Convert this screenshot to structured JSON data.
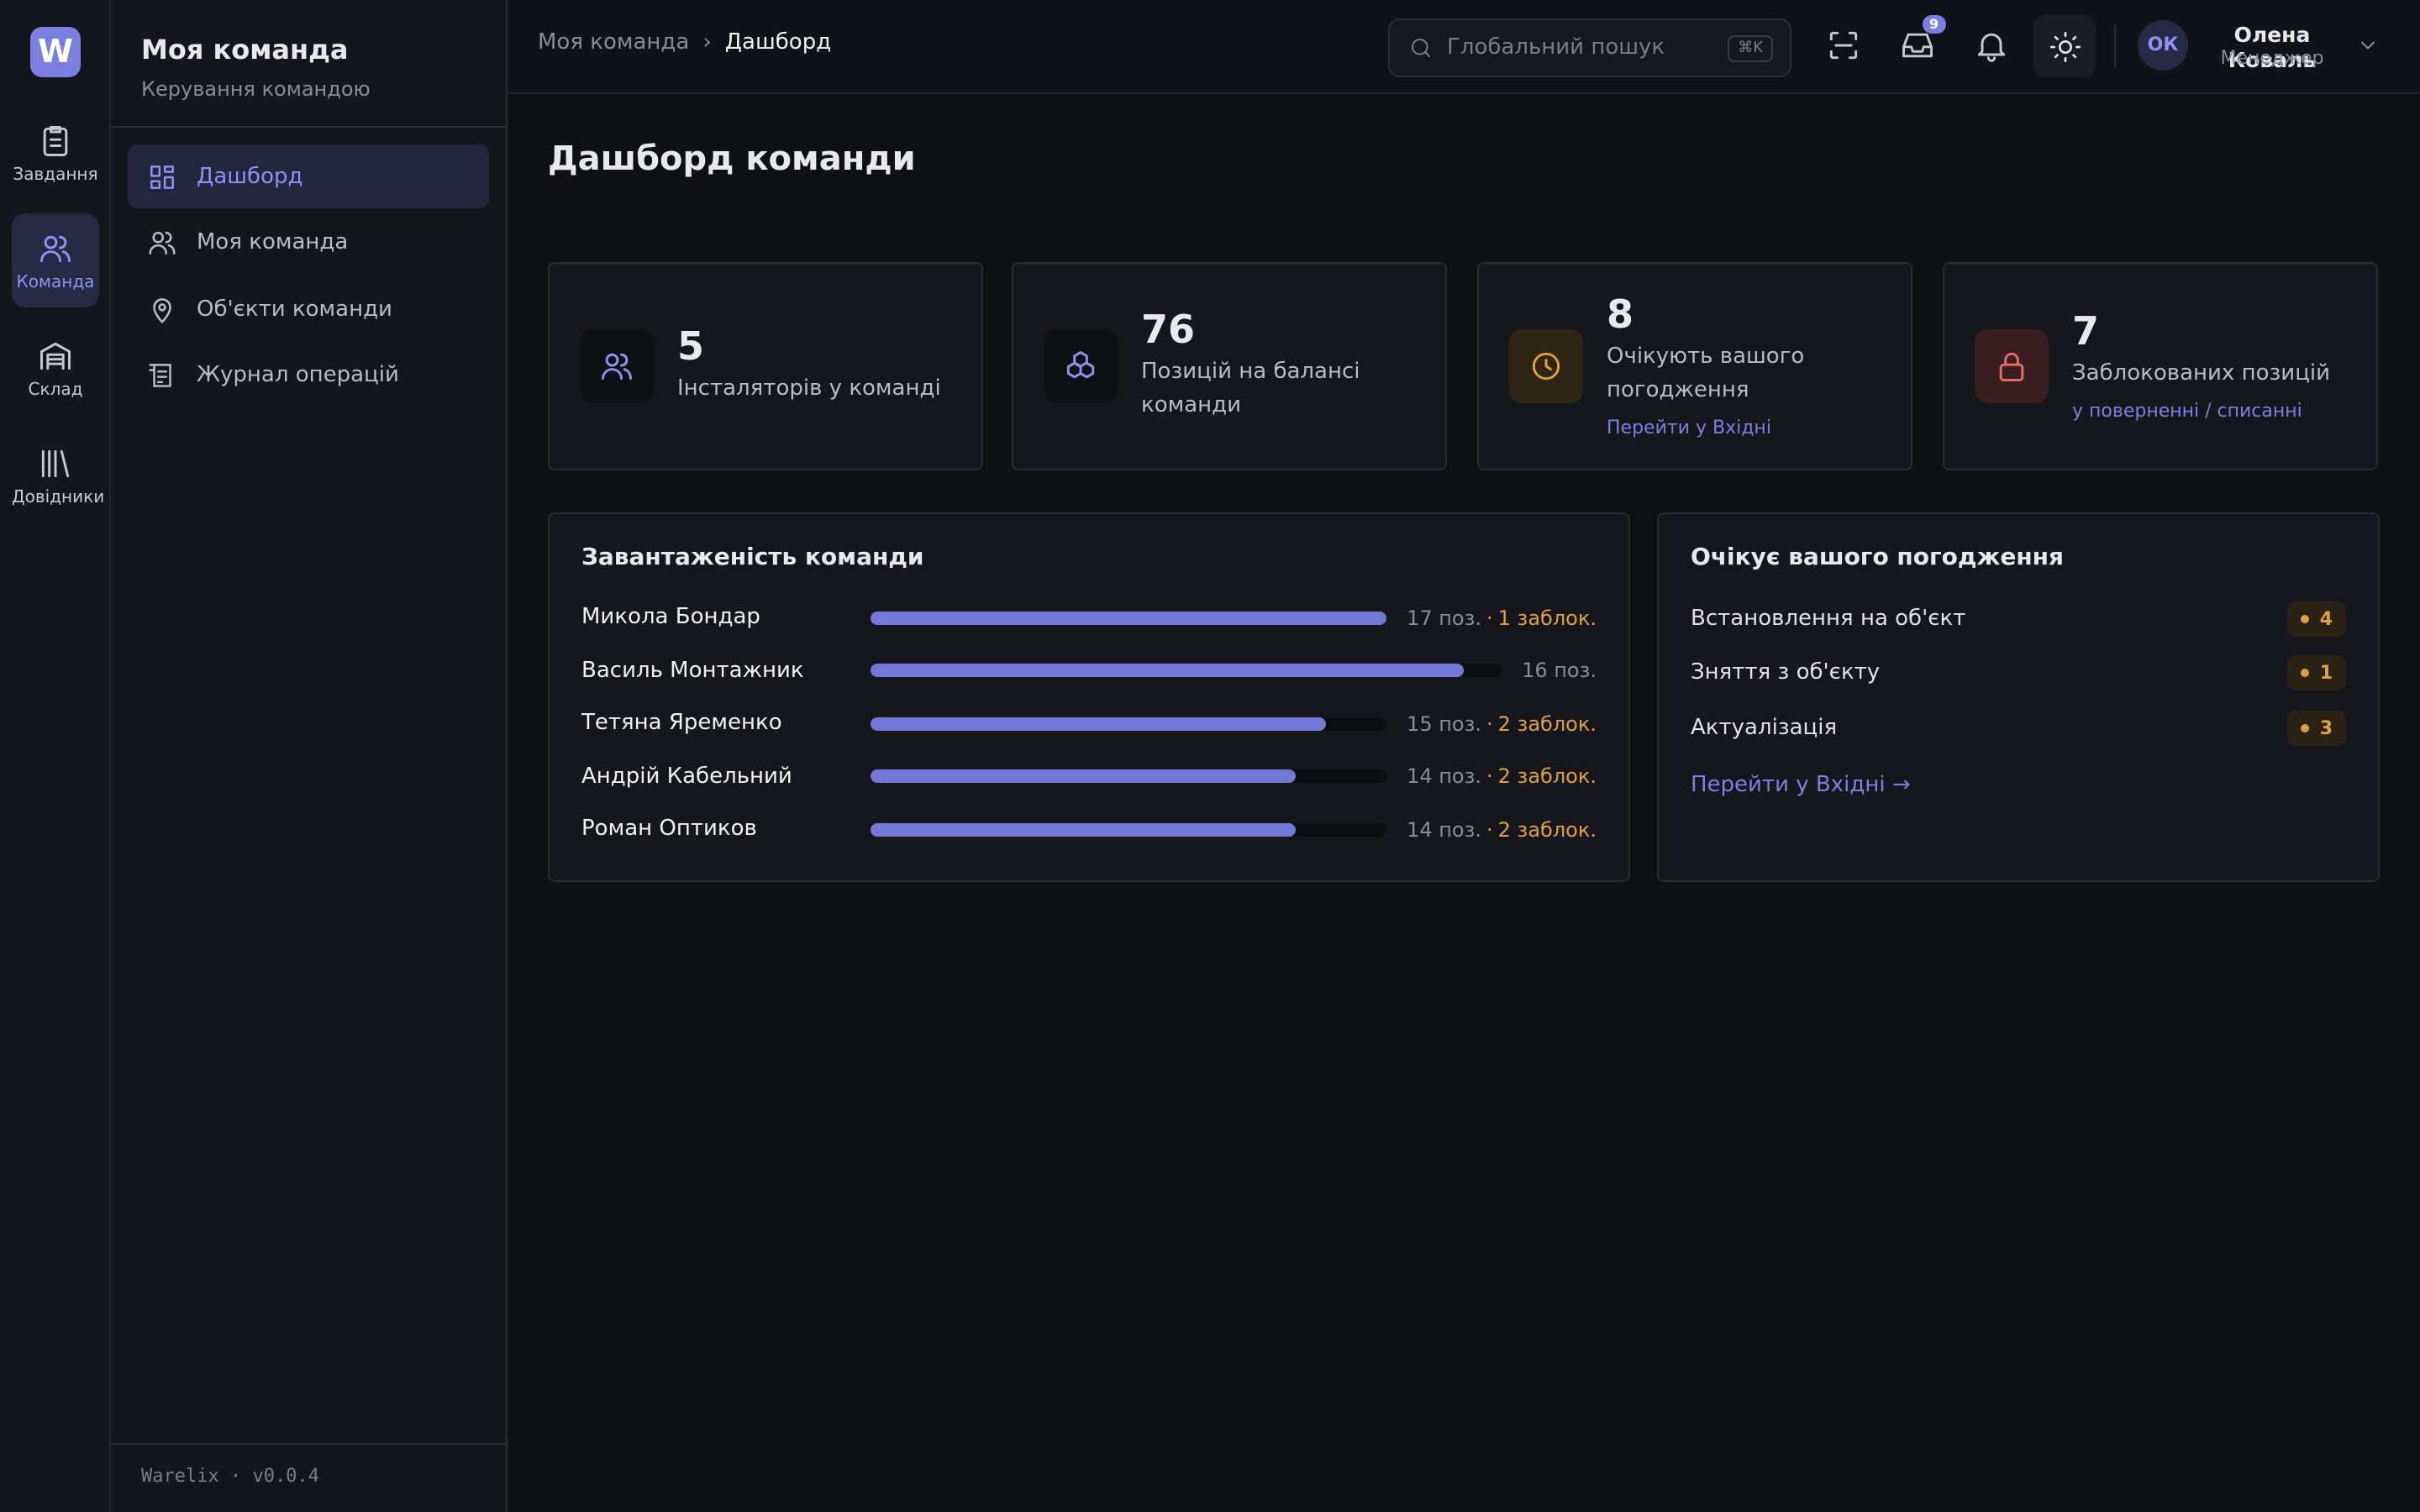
{
  "brand": {
    "logo": "W",
    "version": "Warelix · v0.0.4"
  },
  "rail": [
    {
      "label": "Завдання",
      "active": false
    },
    {
      "label": "Команда",
      "active": true
    },
    {
      "label": "Склад",
      "active": false
    },
    {
      "label": "Довідники",
      "active": false
    }
  ],
  "sidebar": {
    "title": "Моя команда",
    "subtitle": "Керування командою",
    "nav": [
      {
        "label": "Дашборд",
        "active": true
      },
      {
        "label": "Моя команда",
        "active": false
      },
      {
        "label": "Об'єкти команди",
        "active": false
      },
      {
        "label": "Журнал операцій",
        "active": false
      }
    ]
  },
  "topbar": {
    "breadcrumbs": [
      "Моя команда",
      "Дашборд"
    ],
    "breadcrumb_separator": "›",
    "search_placeholder": "Глобальний пошук",
    "search_shortcut": "⌘K",
    "inbox_badge": 9,
    "user": {
      "initials": "ОК",
      "name": "Олена Коваль",
      "role": "Менеджер"
    }
  },
  "page_title": "Дашборд команди",
  "stats": [
    {
      "value": 5,
      "label": "Інсталяторів у команді",
      "link": null,
      "tone": "accent"
    },
    {
      "value": 76,
      "label": "Позицій на балансі команди",
      "link": null,
      "tone": "accent"
    },
    {
      "value": 8,
      "label": "Очікують вашого погодження",
      "link": "Перейти у Вхідні",
      "tone": "amber"
    },
    {
      "value": 7,
      "label": "Заблокованих позицій",
      "link": "у поверненні / списанні",
      "tone": "red"
    }
  ],
  "workload": {
    "title": "Завантаженість команди",
    "separator": "·",
    "rows": [
      {
        "name": "Микола Бондар",
        "value": 17,
        "value_label": "17 поз.",
        "blocked_label": "1 заблок."
      },
      {
        "name": "Василь Монтажник",
        "value": 16,
        "value_label": "16 поз.",
        "blocked_label": null
      },
      {
        "name": "Тетяна Яременко",
        "value": 15,
        "value_label": "15 поз.",
        "blocked_label": "2 заблок."
      },
      {
        "name": "Андрій Кабельний",
        "value": 14,
        "value_label": "14 поз.",
        "blocked_label": "2 заблок."
      },
      {
        "name": "Роман Оптиков",
        "value": 14,
        "value_label": "14 поз.",
        "blocked_label": "2 заблок."
      }
    ]
  },
  "approvals": {
    "title": "Очікує вашого погодження",
    "items": [
      {
        "label": "Встановлення на об'єкт",
        "count": 4
      },
      {
        "label": "Зняття з об'єкту",
        "count": 1
      },
      {
        "label": "Актуалізація",
        "count": 3
      }
    ],
    "link": "Перейти у Вхідні →"
  }
}
